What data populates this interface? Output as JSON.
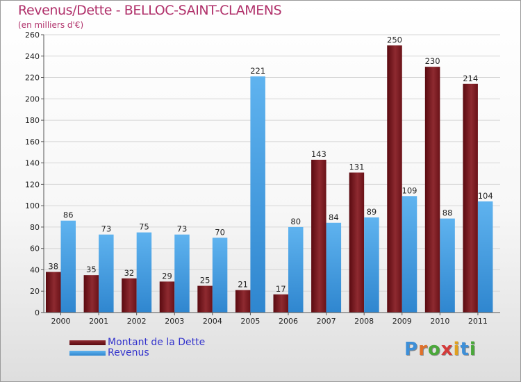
{
  "header": {
    "title": "Revenus/Dette - BELLOC-SAINT-CLAMENS",
    "subtitle": "(en milliers d'€)"
  },
  "legend": {
    "items": [
      {
        "label": "Montant de la Dette",
        "color": "#7a1a1f"
      },
      {
        "label": "Revenus",
        "color": "#4aa3e6"
      }
    ]
  },
  "logo": {
    "text": "Proxiti"
  },
  "colors": {
    "debt_dark": "#5a0a10",
    "debt_light": "#8e2a30",
    "rev_dark": "#2f86cf",
    "rev_light": "#5fb3ef",
    "title": "#b0306a"
  },
  "chart_data": {
    "type": "bar",
    "title": "Revenus/Dette - BELLOC-SAINT-CLAMENS",
    "ylabel": "(en milliers d'€)",
    "xlabel": "",
    "ylim": [
      0,
      260
    ],
    "yticks": [
      0,
      20,
      40,
      60,
      80,
      100,
      120,
      140,
      160,
      180,
      200,
      220,
      240,
      260
    ],
    "grid": true,
    "categories": [
      "2000",
      "2001",
      "2002",
      "2003",
      "2004",
      "2005",
      "2006",
      "2007",
      "2008",
      "2009",
      "2010",
      "2011"
    ],
    "series": [
      {
        "name": "Montant de la Dette",
        "values": [
          38,
          35,
          32,
          29,
          25,
          21,
          17,
          143,
          131,
          250,
          230,
          214
        ]
      },
      {
        "name": "Revenus",
        "values": [
          86,
          73,
          75,
          73,
          70,
          221,
          80,
          84,
          89,
          109,
          88,
          104
        ]
      }
    ]
  }
}
